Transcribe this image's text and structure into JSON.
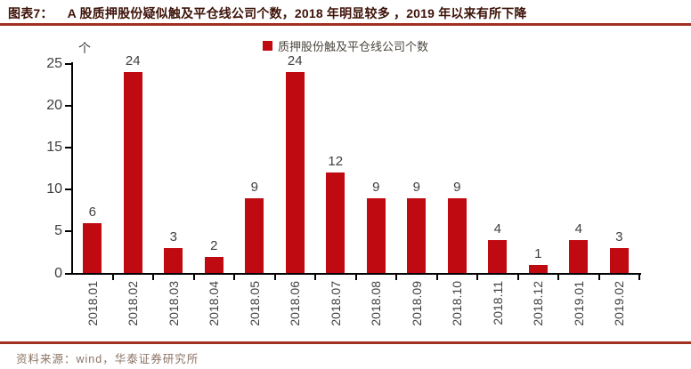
{
  "figure": {
    "label": "图表7：",
    "title": "A 股质押股份疑似触及平仓线公司个数，2018 年明显较多 ，2019 年以来有所下降",
    "source": "资料来源：wind，华泰证券研究所"
  },
  "colors": {
    "bar": "#C00A11",
    "accent": "#A03020",
    "title_text": "#3D1208",
    "source_text": "#8B7364",
    "axis": "#000000",
    "label_text": "#3F3F3F"
  },
  "chart_data": {
    "type": "bar",
    "title": "质押股份触及平仓线公司个数",
    "legend": "质押股份触及平仓线公司个数",
    "legend_position": "top-center",
    "unit": "个",
    "xlabel": "",
    "ylabel": "个",
    "categories": [
      "2018.01",
      "2018.02",
      "2018.03",
      "2018.04",
      "2018.05",
      "2018.06",
      "2018.07",
      "2018.08",
      "2018.09",
      "2018.10",
      "2018.11",
      "2018.12",
      "2019.01",
      "2019.02"
    ],
    "values": [
      6,
      24,
      3,
      2,
      9,
      24,
      12,
      9,
      9,
      9,
      4,
      1,
      4,
      3
    ],
    "ylim": [
      0,
      25
    ],
    "yticks": [
      0,
      5,
      10,
      15,
      20,
      25
    ],
    "grid": false,
    "bar_color": "#C00A11"
  }
}
